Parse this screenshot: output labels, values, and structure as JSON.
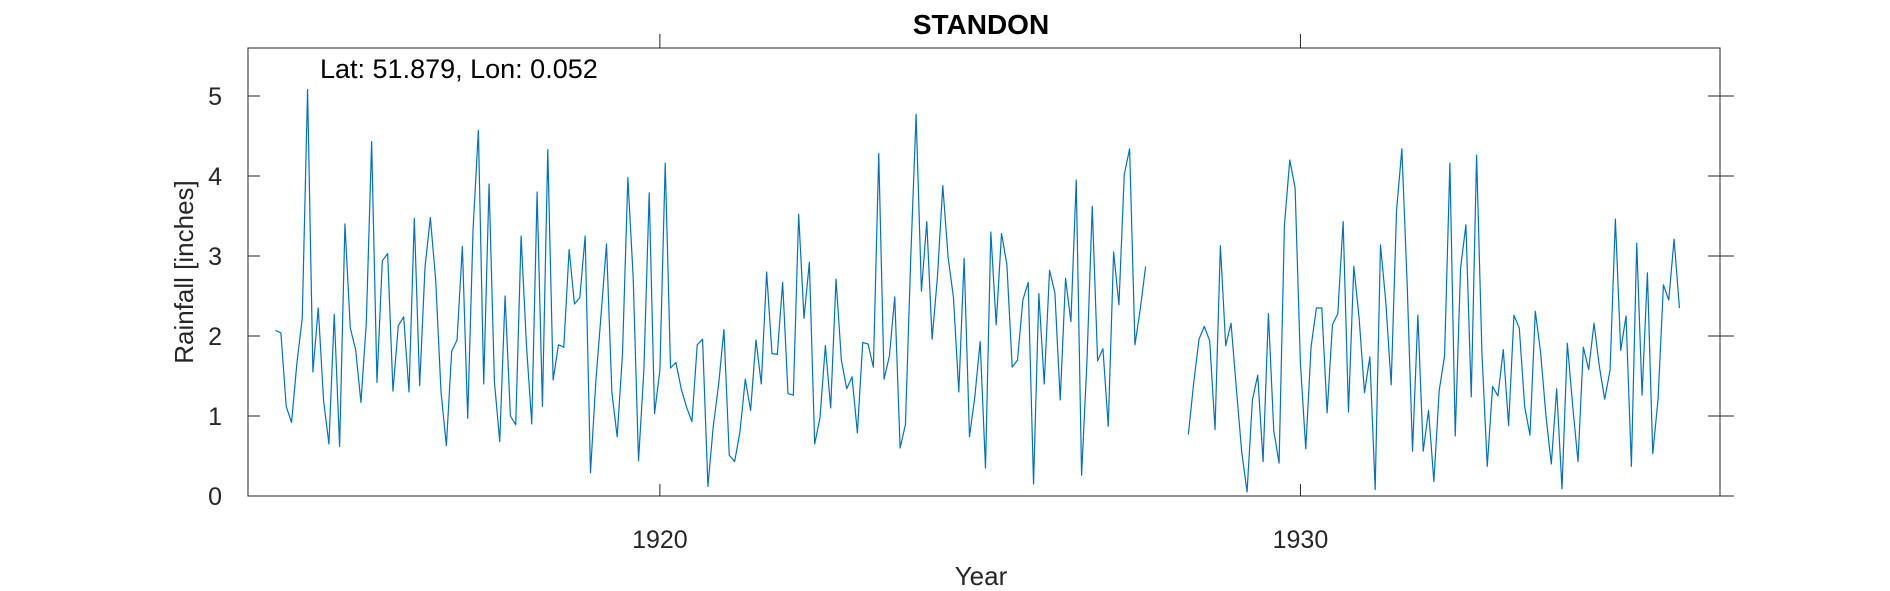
{
  "chart_data": {
    "type": "line",
    "title": "STANDON",
    "annotation": "Lat: 51.879, Lon: 0.052",
    "xlabel": "Year",
    "ylabel": "Rainfall [inches]",
    "xlim": [
      1913.57,
      1936.55
    ],
    "ylim": [
      0,
      5.6
    ],
    "xticks": [
      1920,
      1930
    ],
    "yticks": [
      0,
      1,
      2,
      3,
      4,
      5
    ],
    "grid": false,
    "legend": "none",
    "series_color": "#0072BD",
    "series": [
      {
        "start_year": 1914,
        "values": [
          2.07,
          2.04,
          1.12,
          0.92,
          1.66,
          2.22,
          5.08,
          1.55,
          2.35,
          1.19,
          0.65,
          2.27,
          0.62,
          3.4,
          2.1,
          1.83,
          1.17,
          2.16,
          4.43,
          1.42,
          2.94,
          3.03,
          1.31,
          2.13,
          2.24,
          1.3,
          3.47,
          1.38,
          2.86,
          3.48,
          2.7,
          1.3,
          0.63,
          1.81,
          1.95,
          3.12,
          0.97,
          3.33,
          4.57,
          1.4,
          3.9,
          1.43,
          0.68,
          2.5,
          1.0,
          0.89,
          3.25,
          1.89,
          0.9,
          3.8,
          1.12,
          4.33,
          1.45,
          1.89,
          1.86,
          3.08,
          2.4,
          2.48,
          3.25,
          0.29,
          1.43,
          2.28,
          3.15,
          1.3,
          0.74,
          1.78,
          3.98,
          2.73,
          0.44,
          1.57,
          3.79,
          1.03,
          1.57,
          4.16,
          1.6,
          1.67,
          1.34,
          1.11,
          0.93,
          1.89,
          1.96,
          0.12,
          0.87,
          1.39,
          2.08,
          0.51,
          0.43,
          0.8,
          1.46,
          1.07,
          1.95,
          1.4,
          2.8,
          1.78,
          1.77,
          2.67,
          1.28,
          1.26,
          3.52,
          2.22,
          2.92,
          0.65,
          0.98,
          1.88,
          1.1,
          2.71,
          1.7,
          1.34,
          1.49,
          0.79,
          1.92,
          1.9,
          1.61,
          4.28,
          1.46,
          1.75,
          2.49,
          0.6,
          0.89,
          2.98,
          4.77,
          2.56,
          3.43,
          1.96,
          2.74,
          3.88,
          2.98,
          2.48,
          1.3,
          2.97,
          0.74,
          1.24,
          1.93,
          0.35,
          3.3,
          2.14,
          3.28,
          2.9,
          1.61,
          1.7,
          2.45,
          2.67,
          0.15,
          2.53,
          1.4,
          2.82,
          2.54,
          1.2,
          2.72,
          2.18,
          3.95,
          0.26,
          1.67,
          3.62,
          1.69,
          1.84,
          0.87,
          3.05,
          2.39,
          4.02,
          4.34,
          1.89,
          2.34,
          2.87,
          null,
          null,
          null,
          null,
          null,
          null,
          null,
          0.77,
          1.41,
          1.96,
          2.12,
          1.94,
          0.83,
          3.13,
          1.88,
          2.16,
          1.34,
          0.55,
          0.05,
          1.2,
          1.51,
          0.43,
          2.28,
          0.82,
          0.41,
          3.38,
          4.2,
          3.85,
          1.65,
          0.59,
          1.87,
          2.35,
          2.35,
          1.04,
          2.14,
          2.28,
          3.43,
          1.05,
          2.87,
          2.22,
          1.29,
          1.74,
          0.08,
          3.14,
          2.42,
          1.39,
          3.56,
          4.34,
          2.64,
          0.56,
          2.26,
          0.56,
          1.07,
          0.18,
          1.32,
          1.75,
          4.16,
          0.75,
          2.85,
          3.39,
          1.24,
          4.26,
          1.79,
          0.37,
          1.37,
          1.25,
          1.83,
          0.88,
          2.26,
          2.1,
          1.12,
          0.76,
          2.31,
          1.79,
          1.0,
          0.4,
          1.34,
          0.09,
          1.91,
          1.13,
          0.43,
          1.86,
          1.58,
          2.16,
          1.62,
          1.21,
          1.57,
          3.46,
          1.82,
          2.25,
          0.37,
          3.16,
          1.26,
          2.79,
          0.53,
          1.21,
          2.64,
          2.45,
          3.21,
          2.35
        ]
      }
    ]
  }
}
